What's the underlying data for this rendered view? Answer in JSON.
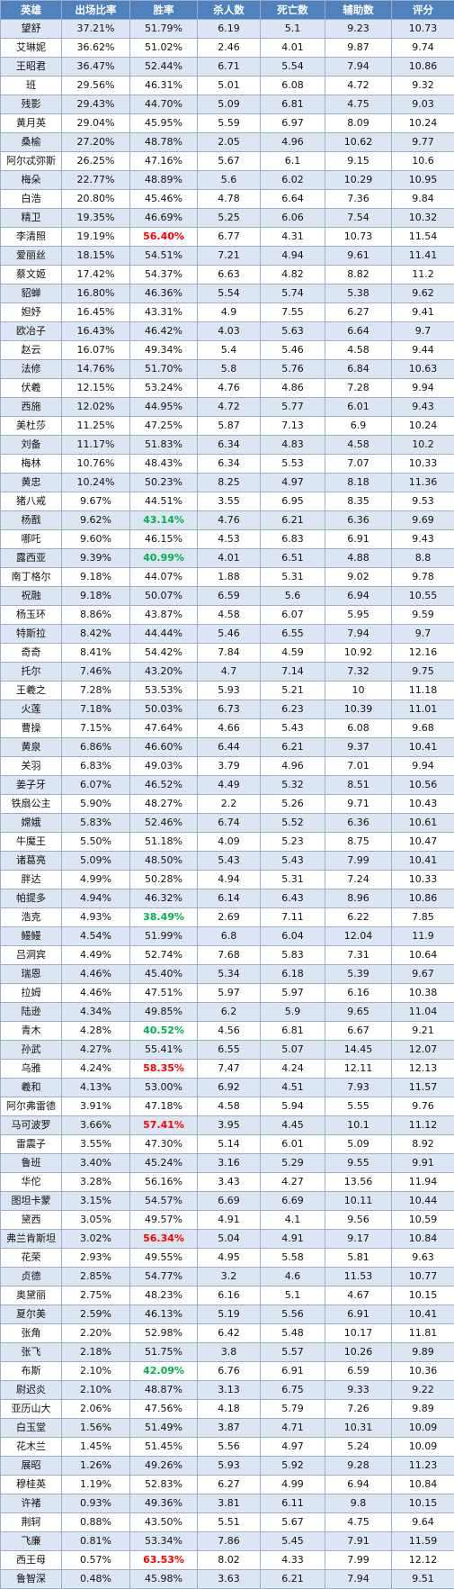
{
  "table": {
    "columns": [
      "英雄",
      "出场比率",
      "胜率",
      "杀人数",
      "死亡数",
      "辅助数",
      "评分"
    ],
    "highlight_colors": {
      "red": "#ff0000",
      "green": "#00b050"
    },
    "rows": [
      {
        "hero": "望舒",
        "pick": "37.21%",
        "win": "51.79%",
        "kills": "6.19",
        "deaths": "5.1",
        "assists": "9.23",
        "score": "10.73"
      },
      {
        "hero": "艾琳妮",
        "pick": "36.62%",
        "win": "51.02%",
        "kills": "2.46",
        "deaths": "4.01",
        "assists": "9.87",
        "score": "9.74"
      },
      {
        "hero": "王昭君",
        "pick": "36.47%",
        "win": "52.44%",
        "kills": "6.71",
        "deaths": "5.54",
        "assists": "7.94",
        "score": "10.86"
      },
      {
        "hero": "班",
        "pick": "29.56%",
        "win": "46.31%",
        "kills": "5.01",
        "deaths": "6.08",
        "assists": "4.72",
        "score": "9.32"
      },
      {
        "hero": "残影",
        "pick": "29.43%",
        "win": "44.70%",
        "kills": "5.09",
        "deaths": "6.81",
        "assists": "4.75",
        "score": "9.03"
      },
      {
        "hero": "黄月英",
        "pick": "29.04%",
        "win": "45.95%",
        "kills": "5.59",
        "deaths": "6.97",
        "assists": "8.09",
        "score": "10.24"
      },
      {
        "hero": "桑榆",
        "pick": "27.20%",
        "win": "48.78%",
        "kills": "2.05",
        "deaths": "4.96",
        "assists": "10.62",
        "score": "9.77"
      },
      {
        "hero": "阿尔忒弥斯",
        "pick": "26.25%",
        "win": "47.16%",
        "kills": "5.67",
        "deaths": "6.1",
        "assists": "9.15",
        "score": "10.6"
      },
      {
        "hero": "梅朵",
        "pick": "22.77%",
        "win": "48.89%",
        "kills": "5.6",
        "deaths": "6.02",
        "assists": "10.29",
        "score": "10.95"
      },
      {
        "hero": "白浩",
        "pick": "20.80%",
        "win": "45.46%",
        "kills": "4.78",
        "deaths": "6.64",
        "assists": "7.36",
        "score": "9.84"
      },
      {
        "hero": "精卫",
        "pick": "19.35%",
        "win": "46.69%",
        "kills": "5.25",
        "deaths": "6.06",
        "assists": "7.54",
        "score": "10.32"
      },
      {
        "hero": "李清照",
        "pick": "19.19%",
        "win": "56.40%",
        "win_hl": "red",
        "kills": "6.77",
        "deaths": "4.31",
        "assists": "10.73",
        "score": "11.54"
      },
      {
        "hero": "爱丽丝",
        "pick": "18.15%",
        "win": "54.51%",
        "kills": "7.21",
        "deaths": "4.94",
        "assists": "9.61",
        "score": "11.41"
      },
      {
        "hero": "蔡文姬",
        "pick": "17.42%",
        "win": "54.37%",
        "kills": "6.63",
        "deaths": "4.82",
        "assists": "8.82",
        "score": "11.2"
      },
      {
        "hero": "貂蝉",
        "pick": "16.80%",
        "win": "46.36%",
        "kills": "5.54",
        "deaths": "5.74",
        "assists": "5.38",
        "score": "9.62"
      },
      {
        "hero": "妲妤",
        "pick": "16.45%",
        "win": "43.31%",
        "kills": "4.9",
        "deaths": "7.55",
        "assists": "6.27",
        "score": "9.41"
      },
      {
        "hero": "欧冶子",
        "pick": "16.43%",
        "win": "46.42%",
        "kills": "4.03",
        "deaths": "5.63",
        "assists": "6.64",
        "score": "9.7"
      },
      {
        "hero": "赵云",
        "pick": "16.07%",
        "win": "49.34%",
        "kills": "5.4",
        "deaths": "5.46",
        "assists": "4.58",
        "score": "9.44"
      },
      {
        "hero": "法修",
        "pick": "14.76%",
        "win": "51.70%",
        "kills": "5.8",
        "deaths": "5.76",
        "assists": "6.84",
        "score": "10.63"
      },
      {
        "hero": "伏羲",
        "pick": "12.15%",
        "win": "53.24%",
        "kills": "4.76",
        "deaths": "4.86",
        "assists": "7.28",
        "score": "9.94"
      },
      {
        "hero": "西施",
        "pick": "12.02%",
        "win": "44.95%",
        "kills": "4.72",
        "deaths": "5.77",
        "assists": "6.01",
        "score": "9.43"
      },
      {
        "hero": "美杜莎",
        "pick": "11.25%",
        "win": "47.25%",
        "kills": "5.87",
        "deaths": "7.13",
        "assists": "6.9",
        "score": "10.24"
      },
      {
        "hero": "刘备",
        "pick": "11.17%",
        "win": "51.83%",
        "kills": "6.34",
        "deaths": "4.83",
        "assists": "4.58",
        "score": "10.2"
      },
      {
        "hero": "梅林",
        "pick": "10.76%",
        "win": "48.43%",
        "kills": "6.34",
        "deaths": "5.53",
        "assists": "7.07",
        "score": "10.33"
      },
      {
        "hero": "黄忠",
        "pick": "10.24%",
        "win": "50.23%",
        "kills": "8.25",
        "deaths": "4.97",
        "assists": "8.18",
        "score": "11.36"
      },
      {
        "hero": "猪八戒",
        "pick": "9.67%",
        "win": "44.51%",
        "kills": "3.55",
        "deaths": "6.95",
        "assists": "8.35",
        "score": "9.53"
      },
      {
        "hero": "杨戬",
        "pick": "9.62%",
        "win": "43.14%",
        "win_hl": "green",
        "kills": "4.76",
        "deaths": "6.21",
        "assists": "6.36",
        "score": "9.69"
      },
      {
        "hero": "哪吒",
        "pick": "9.60%",
        "win": "46.15%",
        "kills": "4.53",
        "deaths": "6.83",
        "assists": "6.91",
        "score": "9.43"
      },
      {
        "hero": "露西亚",
        "pick": "9.39%",
        "win": "40.99%",
        "win_hl": "green",
        "kills": "4.01",
        "deaths": "6.51",
        "assists": "4.88",
        "score": "8.8"
      },
      {
        "hero": "南丁格尔",
        "pick": "9.18%",
        "win": "44.07%",
        "kills": "1.88",
        "deaths": "5.31",
        "assists": "9.02",
        "score": "9.78"
      },
      {
        "hero": "祝融",
        "pick": "9.18%",
        "win": "50.07%",
        "kills": "6.59",
        "deaths": "5.6",
        "assists": "6.94",
        "score": "10.55"
      },
      {
        "hero": "杨玉环",
        "pick": "8.86%",
        "win": "43.87%",
        "kills": "4.58",
        "deaths": "6.07",
        "assists": "5.95",
        "score": "9.59"
      },
      {
        "hero": "特斯拉",
        "pick": "8.42%",
        "win": "44.44%",
        "kills": "5.46",
        "deaths": "6.55",
        "assists": "7.94",
        "score": "9.7"
      },
      {
        "hero": "奇奇",
        "pick": "8.41%",
        "win": "54.42%",
        "kills": "7.84",
        "deaths": "4.59",
        "assists": "10.92",
        "score": "12.16"
      },
      {
        "hero": "托尔",
        "pick": "7.46%",
        "win": "43.20%",
        "kills": "4.7",
        "deaths": "7.14",
        "assists": "7.32",
        "score": "9.75"
      },
      {
        "hero": "王羲之",
        "pick": "7.28%",
        "win": "53.53%",
        "kills": "5.93",
        "deaths": "5.21",
        "assists": "10",
        "score": "11.18"
      },
      {
        "hero": "火莲",
        "pick": "7.18%",
        "win": "50.03%",
        "kills": "6.73",
        "deaths": "6.23",
        "assists": "10.39",
        "score": "11.01"
      },
      {
        "hero": "曹操",
        "pick": "7.15%",
        "win": "47.64%",
        "kills": "4.66",
        "deaths": "5.43",
        "assists": "6.08",
        "score": "9.68"
      },
      {
        "hero": "黄泉",
        "pick": "6.86%",
        "win": "46.60%",
        "kills": "6.44",
        "deaths": "6.21",
        "assists": "9.37",
        "score": "10.41"
      },
      {
        "hero": "关羽",
        "pick": "6.83%",
        "win": "49.03%",
        "kills": "3.79",
        "deaths": "4.96",
        "assists": "7.01",
        "score": "9.94"
      },
      {
        "hero": "姜子牙",
        "pick": "6.07%",
        "win": "46.52%",
        "kills": "4.49",
        "deaths": "5.32",
        "assists": "8.51",
        "score": "10.56"
      },
      {
        "hero": "铁扇公主",
        "pick": "5.90%",
        "win": "48.27%",
        "kills": "2.2",
        "deaths": "5.26",
        "assists": "9.71",
        "score": "10.43"
      },
      {
        "hero": "嫦娥",
        "pick": "5.83%",
        "win": "52.46%",
        "kills": "6.74",
        "deaths": "5.52",
        "assists": "6.36",
        "score": "10.61"
      },
      {
        "hero": "牛魔王",
        "pick": "5.50%",
        "win": "51.18%",
        "kills": "4.09",
        "deaths": "5.23",
        "assists": "8.75",
        "score": "10.47"
      },
      {
        "hero": "诸葛亮",
        "pick": "5.09%",
        "win": "48.50%",
        "kills": "5.43",
        "deaths": "5.43",
        "assists": "7.99",
        "score": "10.41"
      },
      {
        "hero": "胖达",
        "pick": "4.99%",
        "win": "50.28%",
        "kills": "4.94",
        "deaths": "5.31",
        "assists": "7.24",
        "score": "10.33"
      },
      {
        "hero": "帕提多",
        "pick": "4.94%",
        "win": "46.32%",
        "kills": "6.14",
        "deaths": "6.43",
        "assists": "8.96",
        "score": "10.86"
      },
      {
        "hero": "浩克",
        "pick": "4.93%",
        "win": "38.49%",
        "win_hl": "green",
        "kills": "2.69",
        "deaths": "7.11",
        "assists": "6.22",
        "score": "7.85"
      },
      {
        "hero": "鳗鳗",
        "pick": "4.54%",
        "win": "51.99%",
        "kills": "6.8",
        "deaths": "6.04",
        "assists": "12.04",
        "score": "11.9"
      },
      {
        "hero": "吕洞宾",
        "pick": "4.49%",
        "win": "52.74%",
        "kills": "7.68",
        "deaths": "5.83",
        "assists": "7.31",
        "score": "10.64"
      },
      {
        "hero": "瑞恩",
        "pick": "4.46%",
        "win": "45.40%",
        "kills": "5.34",
        "deaths": "6.18",
        "assists": "5.39",
        "score": "9.67"
      },
      {
        "hero": "拉姆",
        "pick": "4.46%",
        "win": "47.51%",
        "kills": "5.97",
        "deaths": "5.97",
        "assists": "6.16",
        "score": "10.38"
      },
      {
        "hero": "陆逊",
        "pick": "4.34%",
        "win": "49.85%",
        "kills": "6.2",
        "deaths": "5.9",
        "assists": "9.65",
        "score": "11.04"
      },
      {
        "hero": "青木",
        "pick": "4.28%",
        "win": "40.52%",
        "win_hl": "green",
        "kills": "4.56",
        "deaths": "6.81",
        "assists": "6.67",
        "score": "9.21"
      },
      {
        "hero": "孙武",
        "pick": "4.27%",
        "win": "55.41%",
        "kills": "6.55",
        "deaths": "5.07",
        "assists": "14.45",
        "score": "12.07"
      },
      {
        "hero": "乌雅",
        "pick": "4.24%",
        "win": "58.35%",
        "win_hl": "red",
        "kills": "7.47",
        "deaths": "4.24",
        "assists": "12.11",
        "score": "12.13"
      },
      {
        "hero": "羲和",
        "pick": "4.13%",
        "win": "53.00%",
        "kills": "6.92",
        "deaths": "4.51",
        "assists": "7.93",
        "score": "11.57"
      },
      {
        "hero": "阿尔弗雷德",
        "pick": "3.91%",
        "win": "47.18%",
        "kills": "4.58",
        "deaths": "5.94",
        "assists": "5.55",
        "score": "9.76"
      },
      {
        "hero": "马可波罗",
        "pick": "3.66%",
        "win": "57.41%",
        "win_hl": "red",
        "kills": "3.95",
        "deaths": "4.45",
        "assists": "10.1",
        "score": "11.12"
      },
      {
        "hero": "雷震子",
        "pick": "3.55%",
        "win": "47.30%",
        "kills": "5.14",
        "deaths": "6.01",
        "assists": "5.09",
        "score": "8.92"
      },
      {
        "hero": "鲁班",
        "pick": "3.40%",
        "win": "45.24%",
        "kills": "3.16",
        "deaths": "5.29",
        "assists": "9.55",
        "score": "9.91"
      },
      {
        "hero": "华佗",
        "pick": "3.28%",
        "win": "56.16%",
        "kills": "3.43",
        "deaths": "4.27",
        "assists": "13.56",
        "score": "11.94"
      },
      {
        "hero": "图坦卡蒙",
        "pick": "3.15%",
        "win": "54.57%",
        "kills": "6.69",
        "deaths": "6.69",
        "assists": "10.11",
        "score": "10.44"
      },
      {
        "hero": "黛西",
        "pick": "3.05%",
        "win": "49.57%",
        "kills": "4.91",
        "deaths": "4.1",
        "assists": "9.56",
        "score": "10.59"
      },
      {
        "hero": "弗兰肯斯坦",
        "pick": "3.02%",
        "win": "56.34%",
        "win_hl": "red",
        "kills": "5.04",
        "deaths": "4.91",
        "assists": "9.17",
        "score": "10.84"
      },
      {
        "hero": "花荣",
        "pick": "2.93%",
        "win": "49.55%",
        "kills": "4.95",
        "deaths": "5.58",
        "assists": "5.81",
        "score": "9.63"
      },
      {
        "hero": "贞德",
        "pick": "2.85%",
        "win": "54.77%",
        "kills": "3.2",
        "deaths": "4.6",
        "assists": "11.53",
        "score": "10.77"
      },
      {
        "hero": "奥黛丽",
        "pick": "2.75%",
        "win": "48.23%",
        "kills": "6.16",
        "deaths": "5.1",
        "assists": "4.67",
        "score": "10.15"
      },
      {
        "hero": "夏尔美",
        "pick": "2.59%",
        "win": "46.13%",
        "kills": "5.19",
        "deaths": "5.56",
        "assists": "6.91",
        "score": "10.41"
      },
      {
        "hero": "张角",
        "pick": "2.20%",
        "win": "52.98%",
        "kills": "6.42",
        "deaths": "5.48",
        "assists": "10.17",
        "score": "11.81"
      },
      {
        "hero": "张飞",
        "pick": "2.18%",
        "win": "51.75%",
        "kills": "3.8",
        "deaths": "5.57",
        "assists": "10.26",
        "score": "9.89"
      },
      {
        "hero": "布斯",
        "pick": "2.10%",
        "win": "42.09%",
        "win_hl": "green",
        "kills": "6.76",
        "deaths": "6.91",
        "assists": "6.59",
        "score": "10.36"
      },
      {
        "hero": "尉迟炎",
        "pick": "2.10%",
        "win": "48.87%",
        "kills": "3.13",
        "deaths": "6.75",
        "assists": "9.33",
        "score": "9.22"
      },
      {
        "hero": "亚历山大",
        "pick": "2.06%",
        "win": "47.56%",
        "kills": "4.18",
        "deaths": "5.79",
        "assists": "7.26",
        "score": "9.89"
      },
      {
        "hero": "白玉堂",
        "pick": "1.56%",
        "win": "51.49%",
        "kills": "3.87",
        "deaths": "4.71",
        "assists": "10.31",
        "score": "10.09"
      },
      {
        "hero": "花木兰",
        "pick": "1.45%",
        "win": "51.45%",
        "kills": "5.56",
        "deaths": "4.97",
        "assists": "5.24",
        "score": "10.09"
      },
      {
        "hero": "展昭",
        "pick": "1.26%",
        "win": "49.26%",
        "kills": "5.93",
        "deaths": "5.92",
        "assists": "9.28",
        "score": "11.23"
      },
      {
        "hero": "穆桂英",
        "pick": "1.19%",
        "win": "52.83%",
        "kills": "6.27",
        "deaths": "4.99",
        "assists": "6.94",
        "score": "10.84"
      },
      {
        "hero": "许褚",
        "pick": "0.93%",
        "win": "49.36%",
        "kills": "3.81",
        "deaths": "6.11",
        "assists": "9.8",
        "score": "10.15"
      },
      {
        "hero": "荆轲",
        "pick": "0.88%",
        "win": "43.50%",
        "kills": "5.51",
        "deaths": "5.67",
        "assists": "4.75",
        "score": "9.64"
      },
      {
        "hero": "飞廉",
        "pick": "0.81%",
        "win": "53.34%",
        "kills": "7.86",
        "deaths": "5.45",
        "assists": "7.91",
        "score": "11.59"
      },
      {
        "hero": "西王母",
        "pick": "0.57%",
        "win": "63.53%",
        "win_hl": "red",
        "kills": "8.02",
        "deaths": "4.33",
        "assists": "7.99",
        "score": "12.12"
      },
      {
        "hero": "鲁智深",
        "pick": "0.48%",
        "win": "45.98%",
        "kills": "3.63",
        "deaths": "6.21",
        "assists": "7.94",
        "score": "9.51"
      }
    ]
  }
}
